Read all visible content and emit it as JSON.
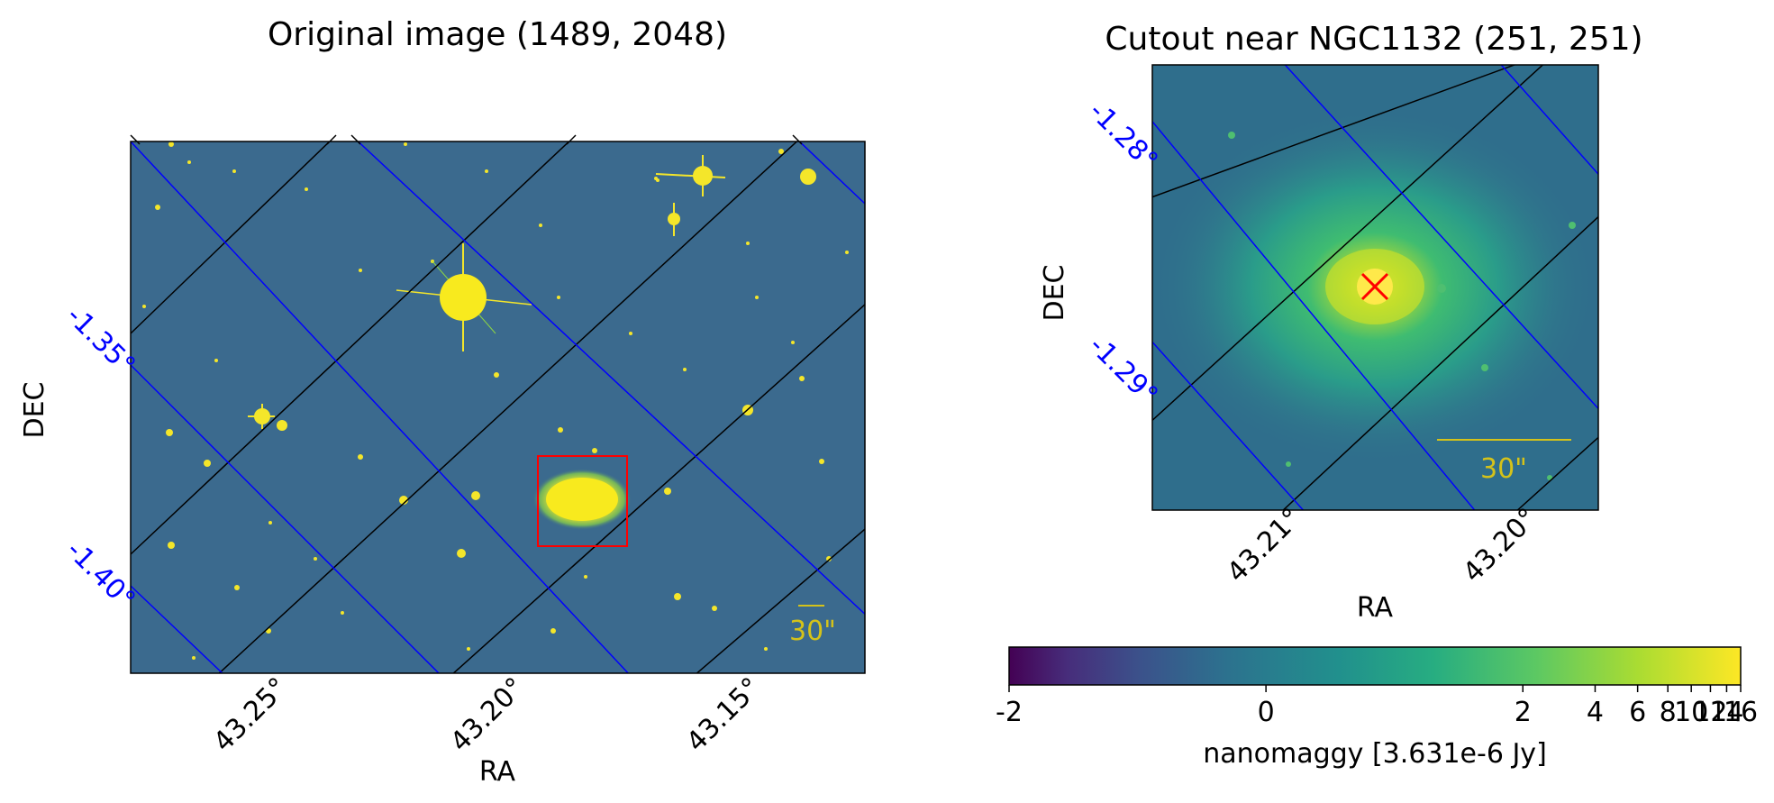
{
  "left_panel": {
    "title": "Original image (1489, 2048)",
    "xlabel": "RA",
    "ylabel": "DEC",
    "ra_ticks": [
      "43.25°",
      "43.20°",
      "43.15°"
    ],
    "dec_ticks": [
      "-1.35°",
      "-1.40°"
    ],
    "scalebar_label": "30\""
  },
  "right_panel": {
    "title": "Cutout near NGC1132 (251, 251)",
    "xlabel": "RA",
    "ylabel": "DEC",
    "ra_ticks": [
      "43.21°",
      "43.20°"
    ],
    "dec_ticks": [
      "-1.28°",
      "-1.29°"
    ],
    "scalebar_label": "30\""
  },
  "colorbar": {
    "label": "nanomaggy [3.631e-6 Jy]",
    "colormap": "viridis",
    "ticks": [
      "-2",
      "0",
      "2",
      "4",
      "6",
      "8",
      "10",
      "12",
      "14",
      "16"
    ],
    "tick_positions": [
      -2,
      0,
      2,
      4,
      6,
      8,
      10,
      12,
      14,
      16
    ]
  },
  "colors": {
    "background": "#3b6a8e",
    "ra_grid": "#000000",
    "dec_grid": "#0000ff",
    "box": "#ff0000",
    "marker": "#ff0000",
    "scalebar": "#d4c21a"
  }
}
